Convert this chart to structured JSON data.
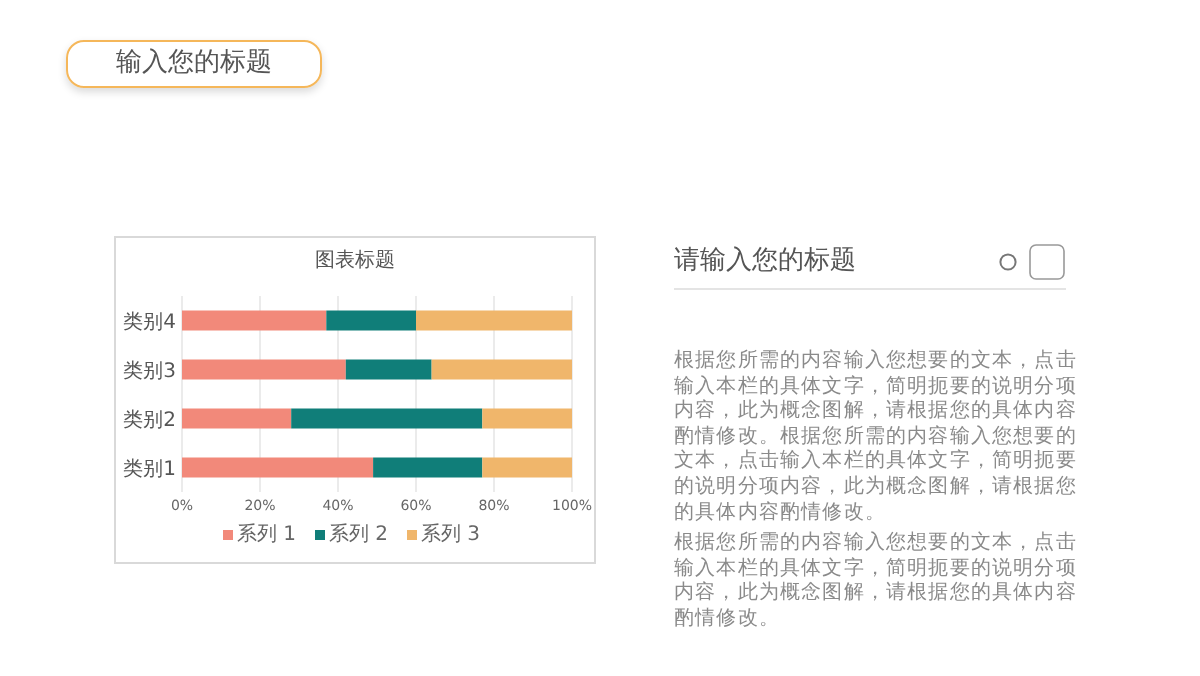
{
  "chart_data": [
    {
      "type": "other",
      "title": "输入您的标题"
    },
    {
      "type": "bar",
      "title": "图表标题",
      "orientation": "horizontal",
      "stacked": true,
      "categories": [
        "类别4",
        "类别3",
        "类别2",
        "类别1"
      ],
      "series": [
        {
          "name": "系列 1",
          "color": "#f2897a",
          "values": [
            37,
            42,
            28,
            49
          ]
        },
        {
          "name": "系列 2",
          "color": "#107e79",
          "values": [
            23,
            22,
            49,
            28
          ]
        },
        {
          "name": "系列 3",
          "color": "#f0b66b",
          "values": [
            40,
            36,
            23,
            23
          ]
        }
      ],
      "xlim": [
        0,
        100
      ],
      "xticks": [
        {
          "value": 0,
          "label": "0%"
        },
        {
          "value": 20,
          "label": "20%"
        },
        {
          "value": 40,
          "label": "40%"
        },
        {
          "value": 60,
          "label": "60%"
        },
        {
          "value": 80,
          "label": "80%"
        },
        {
          "value": 100,
          "label": "100%"
        }
      ],
      "grid": "x",
      "legend": "bottom"
    },
    {
      "type": "other",
      "title": "请输入您的标题",
      "annotations": [
        "根据您所需的内容输入您想要的文本，点击输入本栏的具体文字，简明扼要的说明分项内容，此为概念图解，请根据您的具体内容酌情修改。根据您所需的内容输入您想要的文本，点击输入本栏的具体文字，简明扼要的说明分项内容，此为概念图解，请根据您的具体内容酌情修改。",
        "根据您所需的内容输入您想要的文本，点击输入本栏的具体文字，简明扼要的说明分项内容，此为概念图解，请根据您的具体内容酌情修改。"
      ]
    }
  ]
}
